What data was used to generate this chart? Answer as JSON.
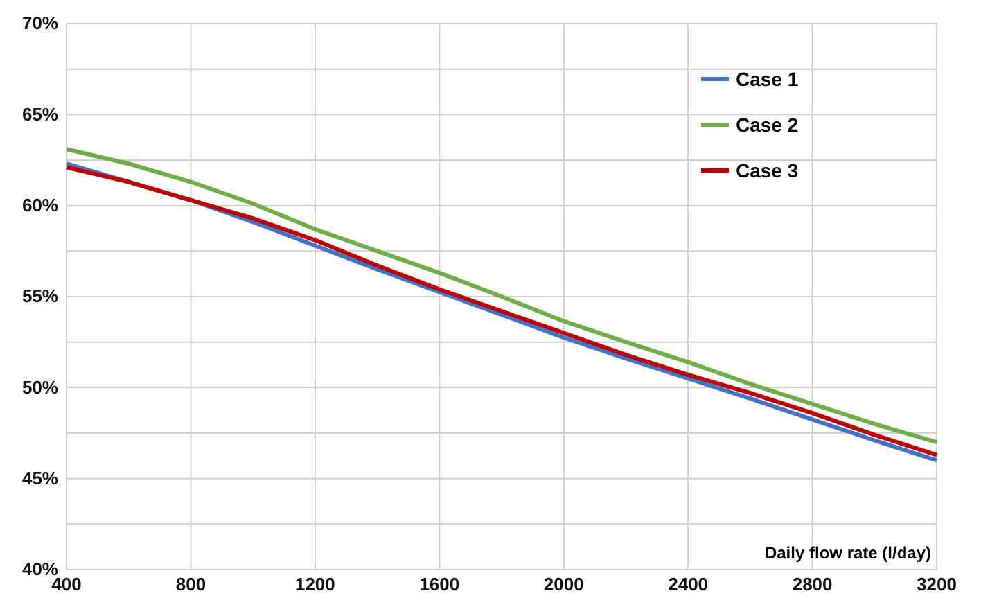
{
  "chart_data": {
    "type": "line",
    "xlabel": "Daily flow rate (l/day)",
    "x": [
      400,
      600,
      800,
      1000,
      1200,
      1400,
      1600,
      1800,
      2000,
      2200,
      2400,
      2600,
      2800,
      3000,
      3200
    ],
    "series": [
      {
        "name": "Case 1",
        "color": "#4472c4",
        "values": [
          62.3,
          61.3,
          60.3,
          59.1,
          57.8,
          56.5,
          55.25,
          54.0,
          52.75,
          51.6,
          50.5,
          49.4,
          48.25,
          47.1,
          46.0
        ]
      },
      {
        "name": "Case 2",
        "color": "#70ad47",
        "values": [
          63.1,
          62.3,
          61.3,
          60.1,
          58.7,
          57.5,
          56.3,
          55.0,
          53.65,
          52.5,
          51.4,
          50.2,
          49.1,
          48.0,
          47.0
        ]
      },
      {
        "name": "Case 3",
        "color": "#c00000",
        "values": [
          62.1,
          61.3,
          60.3,
          59.3,
          58.1,
          56.7,
          55.4,
          54.2,
          53.0,
          51.8,
          50.7,
          49.7,
          48.6,
          47.4,
          46.3
        ]
      }
    ],
    "xlim": [
      400,
      3200
    ],
    "xticks": [
      400,
      800,
      1200,
      1600,
      2000,
      2400,
      2800,
      3200
    ],
    "ylim": [
      40,
      70
    ],
    "yticks": [
      {
        "value": 40,
        "label": "40%"
      },
      {
        "value": 42.5,
        "label": null
      },
      {
        "value": 45,
        "label": "45%"
      },
      {
        "value": 47.5,
        "label": null
      },
      {
        "value": 50,
        "label": "50%"
      },
      {
        "value": 52.5,
        "label": null
      },
      {
        "value": 55,
        "label": "55%"
      },
      {
        "value": 57.5,
        "label": null
      },
      {
        "value": 60,
        "label": "60%"
      },
      {
        "value": 62.5,
        "label": null
      },
      {
        "value": 65,
        "label": "65%"
      },
      {
        "value": 67.5,
        "label": null
      },
      {
        "value": 70,
        "label": "70%"
      }
    ],
    "grid": true,
    "legend": "top right",
    "marker": "none",
    "line_style": "solid"
  }
}
